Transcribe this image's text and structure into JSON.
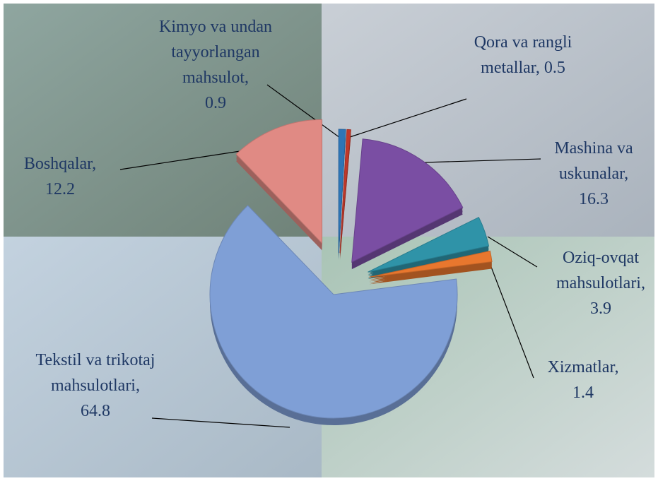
{
  "chart_data": {
    "type": "pie",
    "categories": [
      "Kimyo va undan tayyorlangan mahsulot,",
      "Qora va rangli metallar,",
      "Mashina va uskunalar,",
      "Oziq-ovqat mahsulotlari,",
      "Xizmatlar,",
      "Tekstil va trikotaj mahsulotlari,",
      "Boshqalar,"
    ],
    "values": [
      0.9,
      0.5,
      16.3,
      3.9,
      1.4,
      64.8,
      12.2
    ],
    "colors": [
      "#2e75b6",
      "#c0392b",
      "#7a4ea3",
      "#2f93a8",
      "#e8772e",
      "#7f9fd6",
      "#e08a84"
    ]
  }
}
